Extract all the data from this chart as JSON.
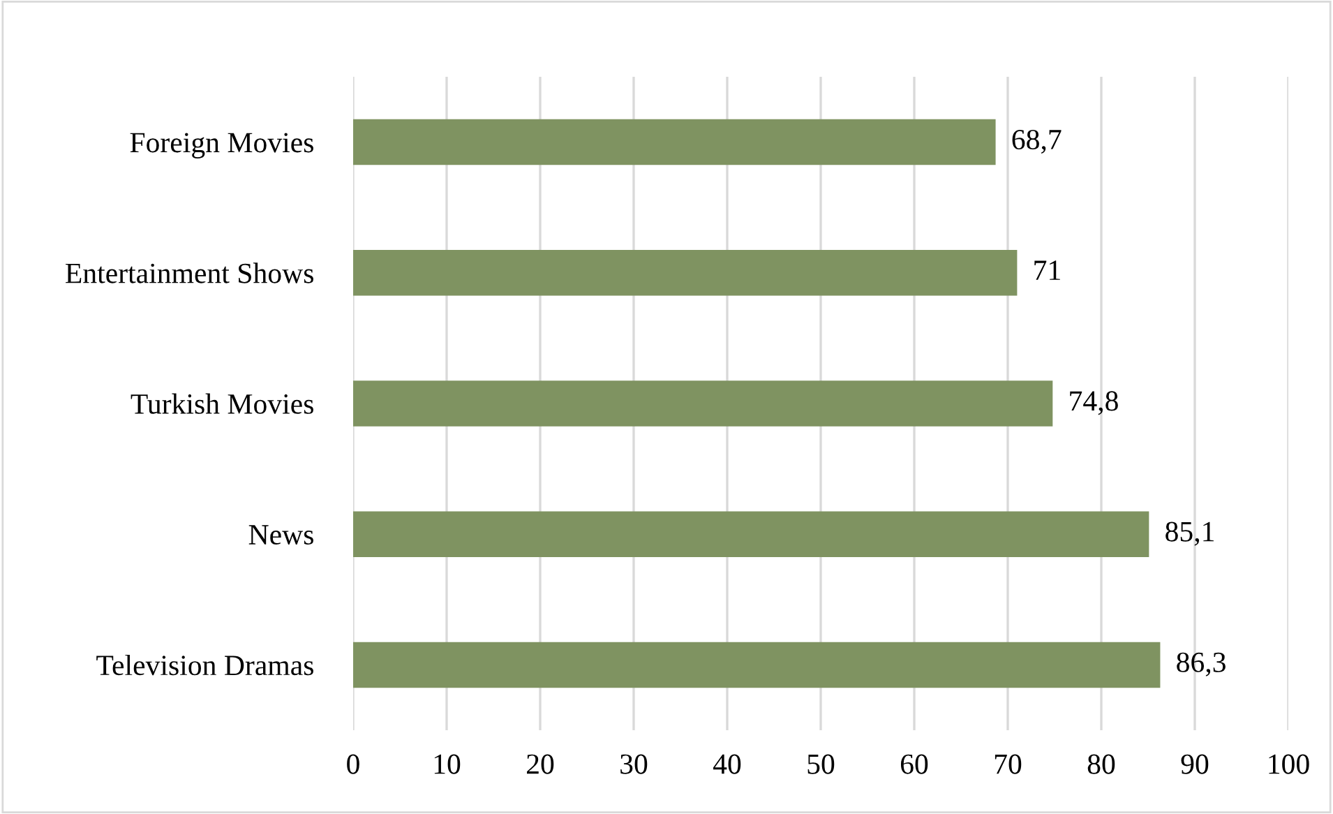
{
  "chart_data": {
    "type": "bar",
    "orientation": "horizontal",
    "categories": [
      "Foreign Movies",
      "Entertainment Shows",
      "Turkish Movies",
      "News",
      "Television Dramas"
    ],
    "values": [
      68.7,
      71,
      74.8,
      85.1,
      86.3
    ],
    "value_labels": [
      "68,7",
      "71",
      "74,8",
      "85,1",
      "86,3"
    ],
    "color": "#7f9361",
    "xlim": [
      0,
      100
    ],
    "xticks": [
      0,
      10,
      20,
      30,
      40,
      50,
      60,
      70,
      80,
      90,
      100
    ],
    "grid": "x",
    "legend": false
  }
}
